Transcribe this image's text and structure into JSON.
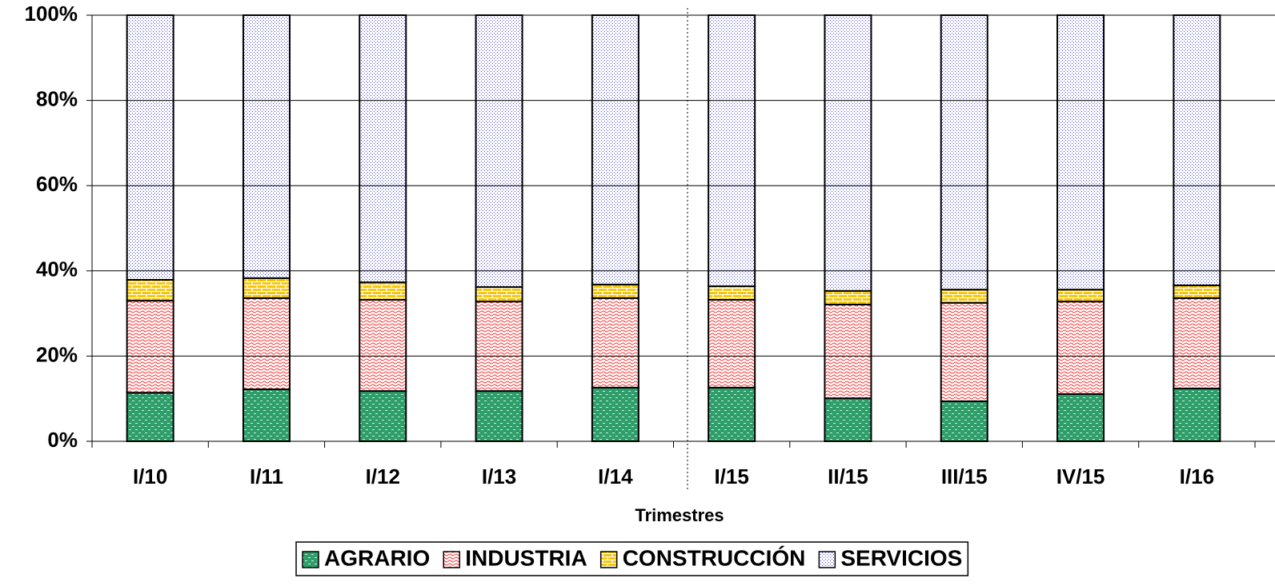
{
  "chart_data": {
    "type": "stacked_bar",
    "x_label": "Trimestres",
    "categories": [
      "I/10",
      "I/11",
      "I/12",
      "I/13",
      "I/14",
      "I/15",
      "II/15",
      "III/15",
      "IV/15",
      "I/16"
    ],
    "series": [
      {
        "name": "AGRARIO",
        "color": "#2e9e6a",
        "values": [
          11.4,
          12.2,
          11.8,
          11.8,
          12.6,
          12.6,
          10.1,
          9.4,
          11.1,
          12.4
        ]
      },
      {
        "name": "INDUSTRIA",
        "color": "#ff3030",
        "values": [
          21.6,
          21.4,
          21.4,
          21.0,
          21.0,
          20.6,
          22.0,
          23.1,
          21.7,
          21.2
        ]
      },
      {
        "name": "CONSTRUCCIÓN",
        "color": "#f5c400",
        "values": [
          4.9,
          4.7,
          4.1,
          3.4,
          3.2,
          3.2,
          3.2,
          3.1,
          2.8,
          3.0
        ]
      },
      {
        "name": "SERVICIOS",
        "color": "#4040e0",
        "values": [
          62.1,
          61.7,
          62.7,
          63.8,
          63.2,
          63.6,
          64.7,
          64.4,
          64.4,
          63.4
        ]
      }
    ],
    "ylim": [
      0,
      100
    ],
    "yticks": [
      {
        "value": 0,
        "label": "0%"
      },
      {
        "value": 20,
        "label": "20%"
      },
      {
        "value": 40,
        "label": "40%"
      },
      {
        "value": 60,
        "label": "60%"
      },
      {
        "value": 80,
        "label": "80%"
      },
      {
        "value": 100,
        "label": "100%"
      }
    ],
    "grid": true
  }
}
